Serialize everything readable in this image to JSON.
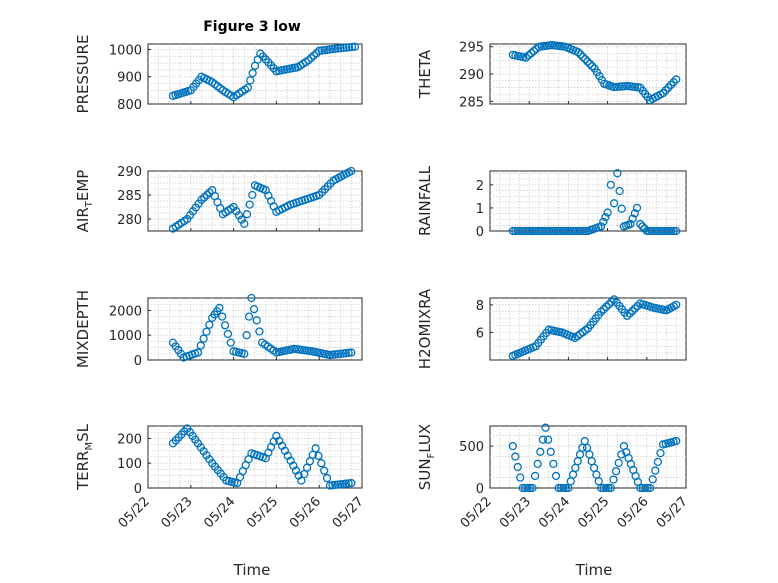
{
  "figure": {
    "title": "Figure 3 low"
  },
  "x_axis": {
    "label": "Time",
    "ticks": [
      "05/22",
      "05/23",
      "05/24",
      "05/25",
      "05/26",
      "05/27"
    ]
  },
  "marker_color": "#0072bd",
  "chart_data": [
    {
      "type": "scatter",
      "title": "Figure 3 low",
      "ylabel": "PRESSURE",
      "ylim": [
        800,
        1020
      ],
      "yticks": [
        800,
        900,
        1000
      ],
      "ytick_labels": [
        "800",
        "900",
        "1000"
      ],
      "x": [
        "05/22 14:00",
        "05/23 00:00",
        "05/23 06:00",
        "05/23 12:00",
        "05/23 18:00",
        "05/24 00:00",
        "05/24 08:00",
        "05/24 12:00",
        "05/24 15:00",
        "05/25 00:00",
        "05/25 12:00",
        "05/25 18:00",
        "05/26 00:00",
        "05/26 12:00",
        "05/26 20:00"
      ],
      "y": [
        830,
        850,
        900,
        880,
        850,
        825,
        860,
        940,
        985,
        920,
        935,
        960,
        995,
        1005,
        1010
      ]
    },
    {
      "type": "scatter",
      "title": "",
      "ylabel": "THETA",
      "ylim": [
        284.5,
        295.5
      ],
      "yticks": [
        285,
        290,
        295
      ],
      "ytick_labels": [
        "285",
        "290",
        "295"
      ],
      "x": [
        "05/22 14:00",
        "05/22 22:00",
        "05/23 06:00",
        "05/23 14:00",
        "05/23 22:00",
        "05/24 06:00",
        "05/24 16:00",
        "05/24 22:00",
        "05/25 04:00",
        "05/25 12:00",
        "05/25 20:00",
        "05/26 02:00",
        "05/26 10:00",
        "05/26 18:00"
      ],
      "y": [
        293.5,
        293,
        295,
        295.3,
        295,
        294,
        291,
        288.2,
        287.6,
        287.8,
        287.5,
        285.2,
        286.5,
        289
      ]
    },
    {
      "type": "scatter",
      "title": "",
      "ylabel": "AIR_TEMP",
      "ylim": [
        277.5,
        290
      ],
      "yticks": [
        280,
        285,
        290
      ],
      "ytick_labels": [
        "280",
        "285",
        "290"
      ],
      "x": [
        "05/22 14:00",
        "05/22 22:00",
        "05/23 06:00",
        "05/23 12:00",
        "05/23 18:00",
        "05/24 00:00",
        "05/24 06:00",
        "05/24 12:00",
        "05/24 18:00",
        "05/25 00:00",
        "05/25 08:00",
        "05/25 16:00",
        "05/26 00:00",
        "05/26 08:00",
        "05/26 18:00"
      ],
      "y": [
        278,
        280,
        284,
        286,
        281,
        282.5,
        279,
        287,
        286,
        281.5,
        283,
        284,
        285,
        288,
        290
      ]
    },
    {
      "type": "scatter",
      "title": "",
      "ylabel": "RAINFALL",
      "ylim": [
        0,
        2.6
      ],
      "yticks": [
        0,
        1,
        2
      ],
      "ytick_labels": [
        "0",
        "1",
        "2"
      ],
      "x": [
        "05/22 14:00",
        "05/23 12:00",
        "05/24 12:00",
        "05/24 20:00",
        "05/25 00:00",
        "05/25 02:00",
        "05/25 04:00",
        "05/25 06:00",
        "05/25 10:00",
        "05/25 14:00",
        "05/25 18:00",
        "05/25 20:00",
        "05/26 00:00",
        "05/26 18:00"
      ],
      "y": [
        0,
        0,
        0,
        0.2,
        0.8,
        2.0,
        1.2,
        2.5,
        0.2,
        0.3,
        1.0,
        0.3,
        0,
        0
      ]
    },
    {
      "type": "scatter",
      "title": "",
      "ylabel": "MIXDEPTH",
      "ylim": [
        0,
        2500
      ],
      "yticks": [
        0,
        1000,
        2000
      ],
      "ytick_labels": [
        "0",
        "1000",
        "2000"
      ],
      "x": [
        "05/22 14:00",
        "05/22 20:00",
        "05/23 04:00",
        "05/23 12:00",
        "05/23 16:00",
        "05/24 00:00",
        "05/24 06:00",
        "05/24 10:00",
        "05/24 16:00",
        "05/25 00:00",
        "05/25 10:00",
        "05/25 20:00",
        "05/26 06:00",
        "05/26 18:00"
      ],
      "y": [
        700,
        100,
        300,
        1700,
        2100,
        350,
        250,
        2500,
        700,
        300,
        450,
        350,
        200,
        300
      ]
    },
    {
      "type": "scatter",
      "title": "",
      "ylabel": "H2OMIXRA",
      "ylim": [
        4,
        8.5
      ],
      "yticks": [
        6,
        8
      ],
      "ytick_labels": [
        "6",
        "8"
      ],
      "x": [
        "05/22 14:00",
        "05/22 20:00",
        "05/23 04:00",
        "05/23 12:00",
        "05/23 20:00",
        "05/24 04:00",
        "05/24 12:00",
        "05/24 20:00",
        "05/25 04:00",
        "05/25 12:00",
        "05/25 20:00",
        "05/26 04:00",
        "05/26 12:00",
        "05/26 18:00"
      ],
      "y": [
        4.3,
        4.6,
        5.0,
        6.2,
        6.0,
        5.6,
        6.3,
        7.5,
        8.4,
        7.2,
        8.1,
        7.8,
        7.6,
        8.0
      ]
    },
    {
      "type": "scatter",
      "title": "",
      "ylabel": "TERR_MSL",
      "ylim": [
        0,
        250
      ],
      "yticks": [
        0,
        100,
        200
      ],
      "ytick_labels": [
        "0",
        "100",
        "200"
      ],
      "x": [
        "05/22 14:00",
        "05/22 22:00",
        "05/23 04:00",
        "05/23 12:00",
        "05/23 20:00",
        "05/24 02:00",
        "05/24 10:00",
        "05/24 18:00",
        "05/25 00:00",
        "05/25 08:00",
        "05/25 14:00",
        "05/25 22:00",
        "05/26 06:00",
        "05/26 18:00"
      ],
      "y": [
        180,
        240,
        180,
        100,
        30,
        20,
        140,
        120,
        210,
        110,
        30,
        160,
        10,
        20
      ]
    },
    {
      "type": "scatter",
      "title": "",
      "ylabel": "SUN_FLUX",
      "ylim": [
        0,
        740
      ],
      "yticks": [
        0,
        500
      ],
      "ytick_labels": [
        "0",
        "500"
      ],
      "x": [
        "05/22 14:00",
        "05/22 20:00",
        "05/23 02:00",
        "05/23 10:00",
        "05/23 18:00",
        "05/24 00:00",
        "05/24 10:00",
        "05/24 20:00",
        "05/25 02:00",
        "05/25 10:00",
        "05/25 20:00",
        "05/26 02:00",
        "05/26 10:00",
        "05/26 18:00"
      ],
      "y": [
        500,
        0,
        0,
        720,
        0,
        0,
        560,
        0,
        0,
        500,
        0,
        0,
        520,
        560
      ]
    }
  ]
}
